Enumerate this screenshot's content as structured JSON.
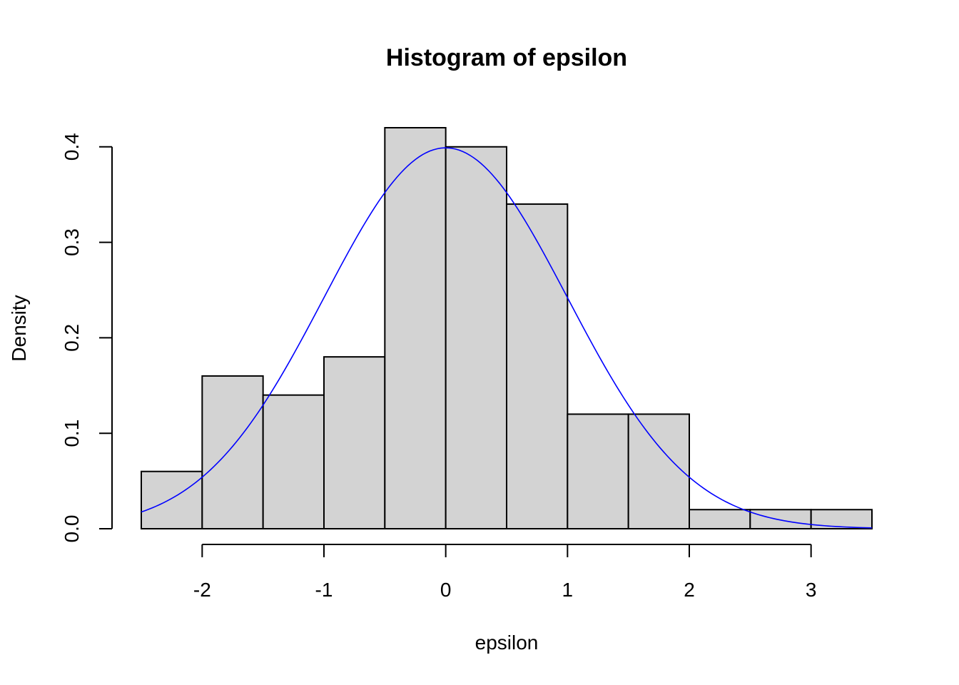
{
  "chart_data": {
    "type": "bar",
    "title": "Histogram of epsilon",
    "xlabel": "epsilon",
    "ylabel": "Density",
    "xlim": [
      -2.5,
      3.5
    ],
    "ylim": [
      0,
      0.42
    ],
    "x_ticks": [
      -2,
      -1,
      0,
      1,
      2,
      3
    ],
    "y_ticks": [
      0.0,
      0.1,
      0.2,
      0.3,
      0.4
    ],
    "y_tick_labels": [
      "0.0",
      "0.1",
      "0.2",
      "0.3",
      "0.4"
    ],
    "bins": [
      {
        "x0": -2.5,
        "x1": -2.0,
        "density": 0.06
      },
      {
        "x0": -2.0,
        "x1": -1.5,
        "density": 0.16
      },
      {
        "x0": -1.5,
        "x1": -1.0,
        "density": 0.14
      },
      {
        "x0": -1.0,
        "x1": -0.5,
        "density": 0.18
      },
      {
        "x0": -0.5,
        "x1": 0.0,
        "density": 0.42
      },
      {
        "x0": 0.0,
        "x1": 0.5,
        "density": 0.4
      },
      {
        "x0": 0.5,
        "x1": 1.0,
        "density": 0.34
      },
      {
        "x0": 1.0,
        "x1": 1.5,
        "density": 0.12
      },
      {
        "x0": 1.5,
        "x1": 2.0,
        "density": 0.12
      },
      {
        "x0": 2.0,
        "x1": 2.5,
        "density": 0.02
      },
      {
        "x0": 2.5,
        "x1": 3.0,
        "density": 0.02
      },
      {
        "x0": 3.0,
        "x1": 3.5,
        "density": 0.02
      }
    ],
    "overlay_curve": {
      "type": "normal-density",
      "mean": 0,
      "sd": 1,
      "range": [
        -2.5,
        3.5
      ]
    },
    "bar_fill": "#d3d3d3",
    "curve_color": "#0000ff",
    "grid": false,
    "legend": "none"
  }
}
